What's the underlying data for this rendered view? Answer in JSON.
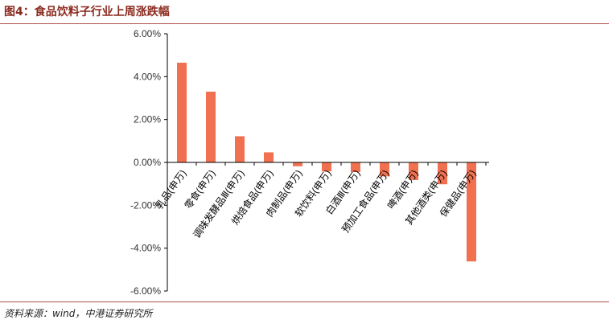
{
  "figure": {
    "title": "图4：食品饮料子行业上周涨跌幅",
    "source": "资料来源：wind，中港证券研究所"
  },
  "chart_data": {
    "type": "bar",
    "categories": [
      "乳品(申万)",
      "零食(申万)",
      "调味发酵品Ⅲ(申万)",
      "烘焙食品(申万)",
      "肉制品(申万)",
      "软饮料(申万)",
      "白酒Ⅲ(申万)",
      "预加工食品(申万)",
      "啤酒(申万)",
      "其他酒类(申万)",
      "保健品(申万)"
    ],
    "values": [
      4.65,
      3.3,
      1.22,
      0.47,
      -0.18,
      -0.42,
      -0.45,
      -0.65,
      -0.82,
      -1.02,
      -4.62
    ],
    "yticks": [
      "6.00%",
      "4.00%",
      "2.00%",
      "0.00%",
      "-2.00%",
      "-4.00%",
      "-6.00%"
    ],
    "ylim": [
      -6,
      6
    ],
    "unit": "%",
    "bar_color": "#f07050",
    "grid": false,
    "legend": "none"
  }
}
